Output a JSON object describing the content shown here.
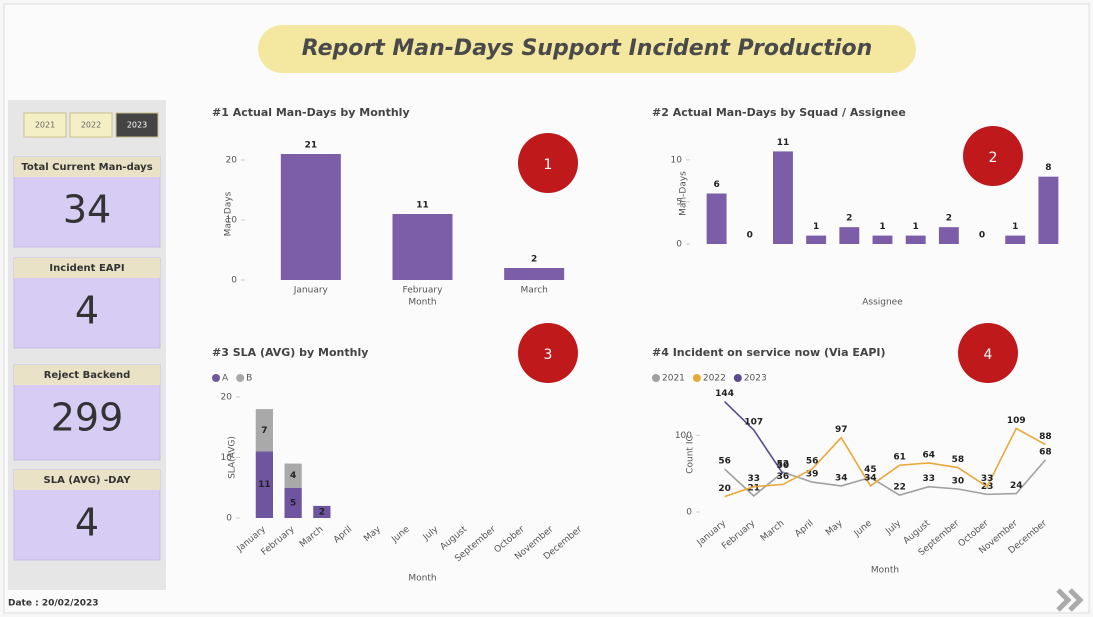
{
  "header": {
    "title": "Report Man-Days Support Incident Production"
  },
  "year_buttons": [
    "2021",
    "2022",
    "2023"
  ],
  "selected_year": "2023",
  "kpis": [
    {
      "label": "Total Current Man-days",
      "value": 34
    },
    {
      "label": "Incident EAPI",
      "value": 4
    },
    {
      "label": "Reject Backend",
      "value": 299
    },
    {
      "label": "SLA (AVG) -DAY",
      "value": 4
    }
  ],
  "date": "Date : 20/02/2023",
  "markers": [
    "1",
    "2",
    "3",
    "4"
  ],
  "chart_data": [
    {
      "type": "bar",
      "title": "#1 Actual Man-Days by Monthly",
      "x_label": "Month",
      "y_label": "Man-Days",
      "categories": [
        "January",
        "February",
        "March"
      ],
      "values": [
        21,
        11,
        2
      ],
      "color": "#7b5ea7",
      "ylim": [
        0,
        22
      ],
      "yticks": [
        0,
        10,
        20
      ],
      "grid": false
    },
    {
      "type": "bar",
      "title": "#2 Actual Man-Days by Squad / Assignee",
      "x_label": "Assignee",
      "y_label": "Man-Days",
      "categories": [
        null,
        null,
        null,
        null,
        null,
        null,
        null,
        null,
        null,
        null,
        null
      ],
      "values": [
        6,
        0,
        11,
        1,
        2,
        1,
        1,
        2,
        0,
        1,
        8
      ],
      "color": "#7b5ea7",
      "ylim": [
        0,
        12
      ],
      "yticks": [
        0,
        5,
        10
      ],
      "grid": false
    },
    {
      "type": "stacked_bar",
      "title": "#3 SLA (AVG) by Monthly",
      "x_label": "Month",
      "y_label": "SLA(AVG)",
      "categories": [
        "January",
        "February",
        "March",
        "April",
        "May",
        "June",
        "July",
        "August",
        "September",
        "October",
        "November",
        "December"
      ],
      "series": [
        {
          "name": "A",
          "color": "#6f55a0",
          "values": [
            11,
            5,
            2,
            null,
            null,
            null,
            null,
            null,
            null,
            null,
            null,
            null
          ]
        },
        {
          "name": "B",
          "color": "#a9a9a9",
          "values": [
            7,
            4,
            null,
            null,
            null,
            null,
            null,
            null,
            null,
            null,
            null,
            null
          ]
        }
      ],
      "ylim": [
        0,
        20
      ],
      "yticks": [
        0,
        10,
        20
      ],
      "grid": false,
      "legend": "top-left"
    },
    {
      "type": "line",
      "title": "#4 Incident on service now (Via EAPI)",
      "x_label": "Month",
      "y_label": "Count IC",
      "categories": [
        "January",
        "February",
        "March",
        "April",
        "May",
        "June",
        "July",
        "August",
        "September",
        "October",
        "November",
        "December"
      ],
      "series": [
        {
          "name": "2021",
          "color": "#a0a0a0",
          "values": [
            56,
            21,
            52,
            39,
            34,
            45,
            22,
            33,
            30,
            23,
            24,
            68
          ]
        },
        {
          "name": "2022",
          "color": "#e8a93a",
          "values": [
            20,
            33,
            36,
            56,
            97,
            34,
            61,
            64,
            58,
            33,
            109,
            88
          ]
        },
        {
          "name": "2023",
          "color": "#5b4a8f",
          "values": [
            144,
            107,
            50,
            null,
            null,
            null,
            null,
            null,
            null,
            null,
            null,
            null
          ]
        }
      ],
      "ylim": [
        0,
        150
      ],
      "yticks": [
        0,
        100
      ],
      "grid": false,
      "legend": "top-left"
    }
  ]
}
